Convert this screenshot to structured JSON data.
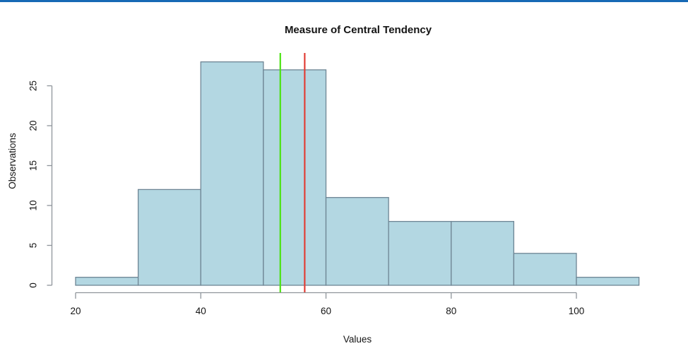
{
  "page": {
    "top_accent_color": "#1769b5",
    "background": "#ffffff"
  },
  "chart_data": {
    "type": "bar",
    "subtype": "histogram",
    "title": "Measure of Central Tendency",
    "xlabel": "Values",
    "ylabel": "Observations",
    "bin_edges": [
      20,
      30,
      40,
      50,
      60,
      70,
      80,
      90,
      100,
      110
    ],
    "counts": [
      1,
      12,
      28,
      27,
      11,
      8,
      8,
      4,
      1
    ],
    "x_ticks": [
      20,
      40,
      60,
      80,
      100
    ],
    "y_ticks": [
      0,
      5,
      10,
      15,
      20,
      25
    ],
    "xlim": [
      20,
      110
    ],
    "ylim": [
      0,
      25
    ],
    "grid": false,
    "legend": "none",
    "colors": {
      "bar_fill": "#b3d7e2",
      "bar_border": "#6e8594",
      "axis": "#8f959b",
      "text": "#141414",
      "vline_green": "#4ce314",
      "vline_red": "#e13f37"
    },
    "vlines": [
      {
        "name": "green-vertical-line",
        "x": 52.7,
        "color_key": "vline_green"
      },
      {
        "name": "red-vertical-line",
        "x": 56.6,
        "color_key": "vline_red"
      }
    ]
  }
}
